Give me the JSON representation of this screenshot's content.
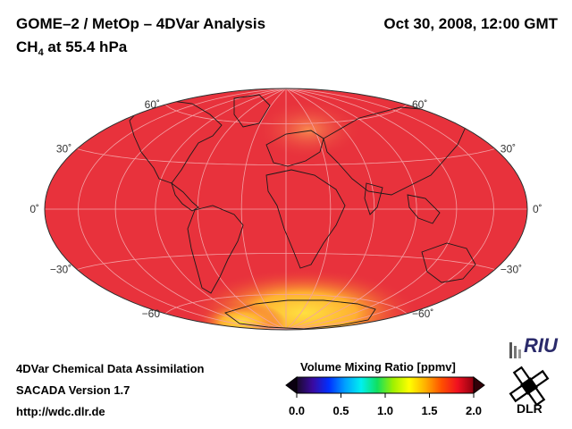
{
  "header": {
    "title": "GOME–2 / MetOp – 4DVar Analysis",
    "species_main": "CH",
    "species_sub": "4",
    "species_rest": " at 55.4 hPa",
    "datetime": "Oct 30, 2008, 12:00 GMT"
  },
  "map": {
    "projection": "Hammer-Aitoff",
    "background_color": "#e8323c",
    "graticule_color": "#f4a0a4",
    "lat_labels": [
      {
        "text": "60˚",
        "lat": 60,
        "side": "left"
      },
      {
        "text": "30˚",
        "lat": 30,
        "side": "left"
      },
      {
        "text": "0˚",
        "lat": 0,
        "side": "left"
      },
      {
        "text": "−30˚",
        "lat": -30,
        "side": "left"
      },
      {
        "text": "−60",
        "lat": -60,
        "side": "left"
      },
      {
        "text": "60˚",
        "lat": 60,
        "side": "right"
      },
      {
        "text": "30˚",
        "lat": 30,
        "side": "right"
      },
      {
        "text": "0˚",
        "lat": 0,
        "side": "right"
      },
      {
        "text": "−30˚",
        "lat": -30,
        "side": "right"
      },
      {
        "text": "−60˚",
        "lat": -60,
        "side": "right"
      }
    ]
  },
  "footer": {
    "line1": "4DVar Chemical Data Assimilation",
    "line2": "SACADA Version 1.7",
    "line3": "http://wdc.dlr.de"
  },
  "colorbar": {
    "title": "Volume Mixing Ratio [ppmv]",
    "range": [
      0.0,
      2.0
    ],
    "ticks": [
      "0.0",
      "0.5",
      "1.0",
      "1.5",
      "2.0"
    ],
    "tick_values": [
      0.0,
      0.5,
      1.0,
      1.5,
      2.0
    ],
    "colors": [
      "#1a0a2a",
      "#3a0aa0",
      "#0030ff",
      "#00a0ff",
      "#00f0f0",
      "#10e060",
      "#a0f000",
      "#ffff00",
      "#ffb000",
      "#ff5000",
      "#f01020",
      "#900010"
    ]
  },
  "logos": {
    "riu": "RIU",
    "dlr": "DLR",
    "riu_icon": "riu-building-icon",
    "dlr_icon": "dlr-cross-icon"
  }
}
